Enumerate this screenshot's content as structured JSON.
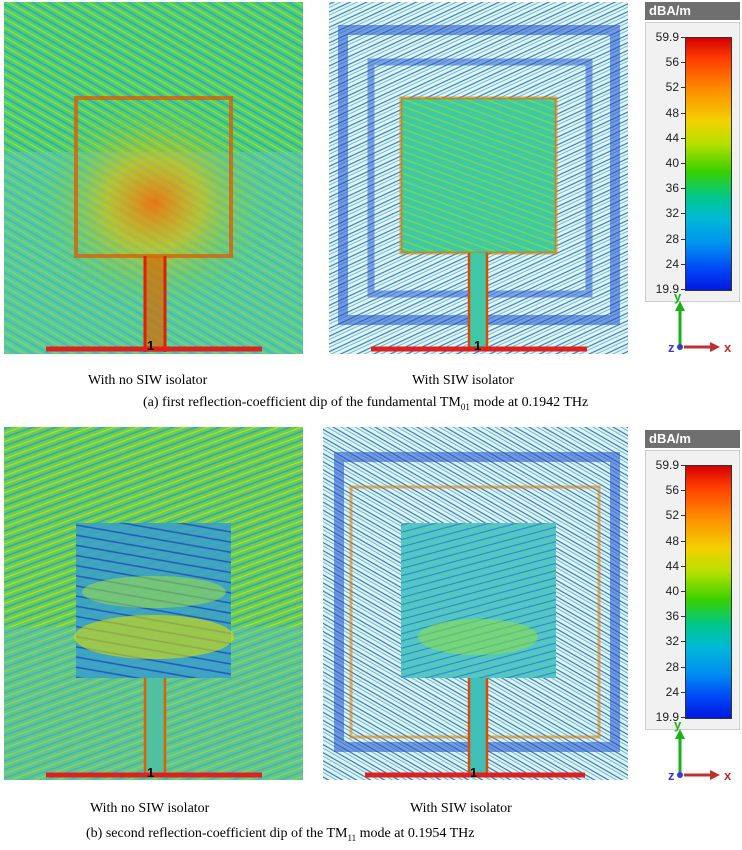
{
  "panels": [
    {
      "id": "a",
      "left_label": "With no SIW isolator",
      "right_label": "With SIW isolator",
      "caption_prefix": "(a) first reflection-coefficient dip of the fundamental TM",
      "caption_sub": "01",
      "caption_suffix": " mode at 0.1942 THz"
    },
    {
      "id": "b",
      "left_label": "With no SIW isolator",
      "right_label": "With SIW isolator",
      "caption_prefix": "(b) second reflection-coefficient dip of the TM",
      "caption_sub": "11",
      "caption_suffix": " mode at 0.1954 THz"
    }
  ],
  "port_label": "1",
  "colorbar": {
    "unit": "dBA/m",
    "ticks": [
      "59.9",
      "56",
      "52",
      "48",
      "44",
      "40",
      "36",
      "32",
      "28",
      "24",
      "19.9"
    ],
    "colors": {
      "max": "#d40000",
      "mid": "#3ad000",
      "min": "#0018e0"
    }
  },
  "axes": {
    "y": "y",
    "x": "x",
    "z": "z"
  }
}
